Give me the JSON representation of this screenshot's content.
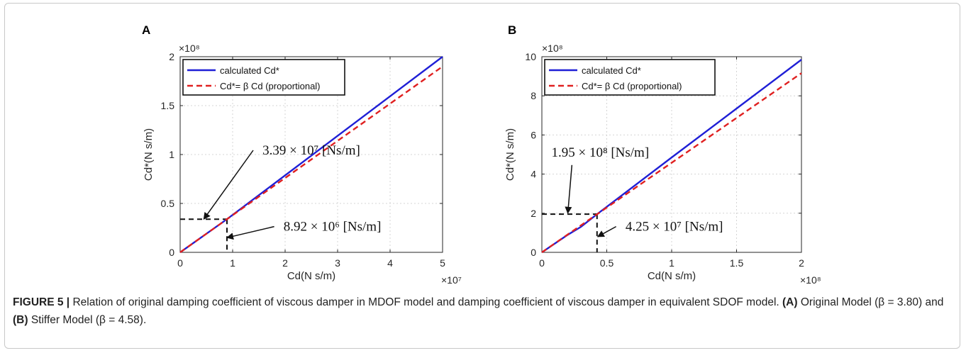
{
  "caption": {
    "figure_label": "FIGURE 5 |",
    "text_1": "Relation of original damping coefficient of viscous damper in MDOF model and damping coefficient of viscous damper in equivalent SDOF model.",
    "label_a": "(A)",
    "text_2": "Original Model (β = 3.80) and",
    "label_b": "(B)",
    "text_3": "Stiffer Model (β = 4.58)."
  },
  "chart_data": [
    {
      "panel_label": "A",
      "type": "line",
      "xlabel": "Cd(N s/m)",
      "ylabel": "Cd*(N s/m)",
      "xlim": [
        0,
        5
      ],
      "ylim": [
        0,
        2
      ],
      "x_multiplier": "×10⁷",
      "y_multiplier": "×10⁸",
      "x_ticks": [
        "0",
        "1",
        "2",
        "3",
        "4",
        "5"
      ],
      "y_ticks": [
        "0",
        "0.5",
        "1",
        "1.5",
        "2"
      ],
      "x_tick_values": [
        0,
        1,
        2,
        3,
        4,
        5
      ],
      "y_tick_values": [
        0,
        0.5,
        1,
        1.5,
        2
      ],
      "grid": true,
      "legend_position": "top-left",
      "series": [
        {
          "name": "calculated Cd*",
          "color": "#1f1fd6",
          "style": "solid",
          "x": [
            0,
            0.892,
            5
          ],
          "y": [
            0,
            0.339,
            2.0
          ]
        },
        {
          "name": "Cd*= β Cd (proportional)",
          "color": "#e02020",
          "style": "dashed",
          "x": [
            0,
            5
          ],
          "y": [
            0,
            1.9
          ]
        }
      ],
      "guide_point": {
        "x": 0.892,
        "y": 0.339
      },
      "annotations": [
        {
          "text": "3.39 × 10⁷ [Ns/m]",
          "points_to": {
            "x": 0.45,
            "y": 0.339
          },
          "label_at": {
            "x": 2.5,
            "y": 1.0
          }
        },
        {
          "text": "8.92 × 10⁶ [Ns/m]",
          "points_to": {
            "x": 0.892,
            "y": 0.15
          },
          "label_at": {
            "x": 2.9,
            "y": 0.22
          }
        }
      ]
    },
    {
      "panel_label": "B",
      "type": "line",
      "xlabel": "Cd(N s/m)",
      "ylabel": "Cd*(N s/m)",
      "xlim": [
        0,
        2
      ],
      "ylim": [
        0,
        10
      ],
      "x_multiplier": "×10⁸",
      "y_multiplier": "×10⁸",
      "x_ticks": [
        "0",
        "0.5",
        "1",
        "1.5",
        "2"
      ],
      "y_ticks": [
        "0",
        "2",
        "4",
        "6",
        "8",
        "10"
      ],
      "x_tick_values": [
        0,
        0.5,
        1,
        1.5,
        2
      ],
      "y_tick_values": [
        0,
        2,
        4,
        6,
        8,
        10
      ],
      "grid": true,
      "legend_position": "top-left",
      "series": [
        {
          "name": "calculated Cd*",
          "color": "#1f1fd6",
          "style": "solid",
          "x": [
            0,
            0.2,
            0.3,
            0.425,
            1.0,
            1.5,
            2.0
          ],
          "y": [
            0,
            0.9,
            1.3,
            1.95,
            4.85,
            7.35,
            9.85
          ]
        },
        {
          "name": "Cd*= β Cd (proportional)",
          "color": "#e02020",
          "style": "dashed",
          "x": [
            0,
            2
          ],
          "y": [
            0,
            9.16
          ]
        }
      ],
      "guide_point": {
        "x": 0.425,
        "y": 1.95
      },
      "annotations": [
        {
          "text": "1.95 × 10⁸ [Ns/m]",
          "points_to": {
            "x": 0.2,
            "y": 2.0
          },
          "label_at": {
            "x": 0.45,
            "y": 4.9
          }
        },
        {
          "text": "4.25 × 10⁷ [Ns/m]",
          "points_to": {
            "x": 0.43,
            "y": 0.8
          },
          "label_at": {
            "x": 1.02,
            "y": 1.1
          }
        }
      ]
    }
  ]
}
